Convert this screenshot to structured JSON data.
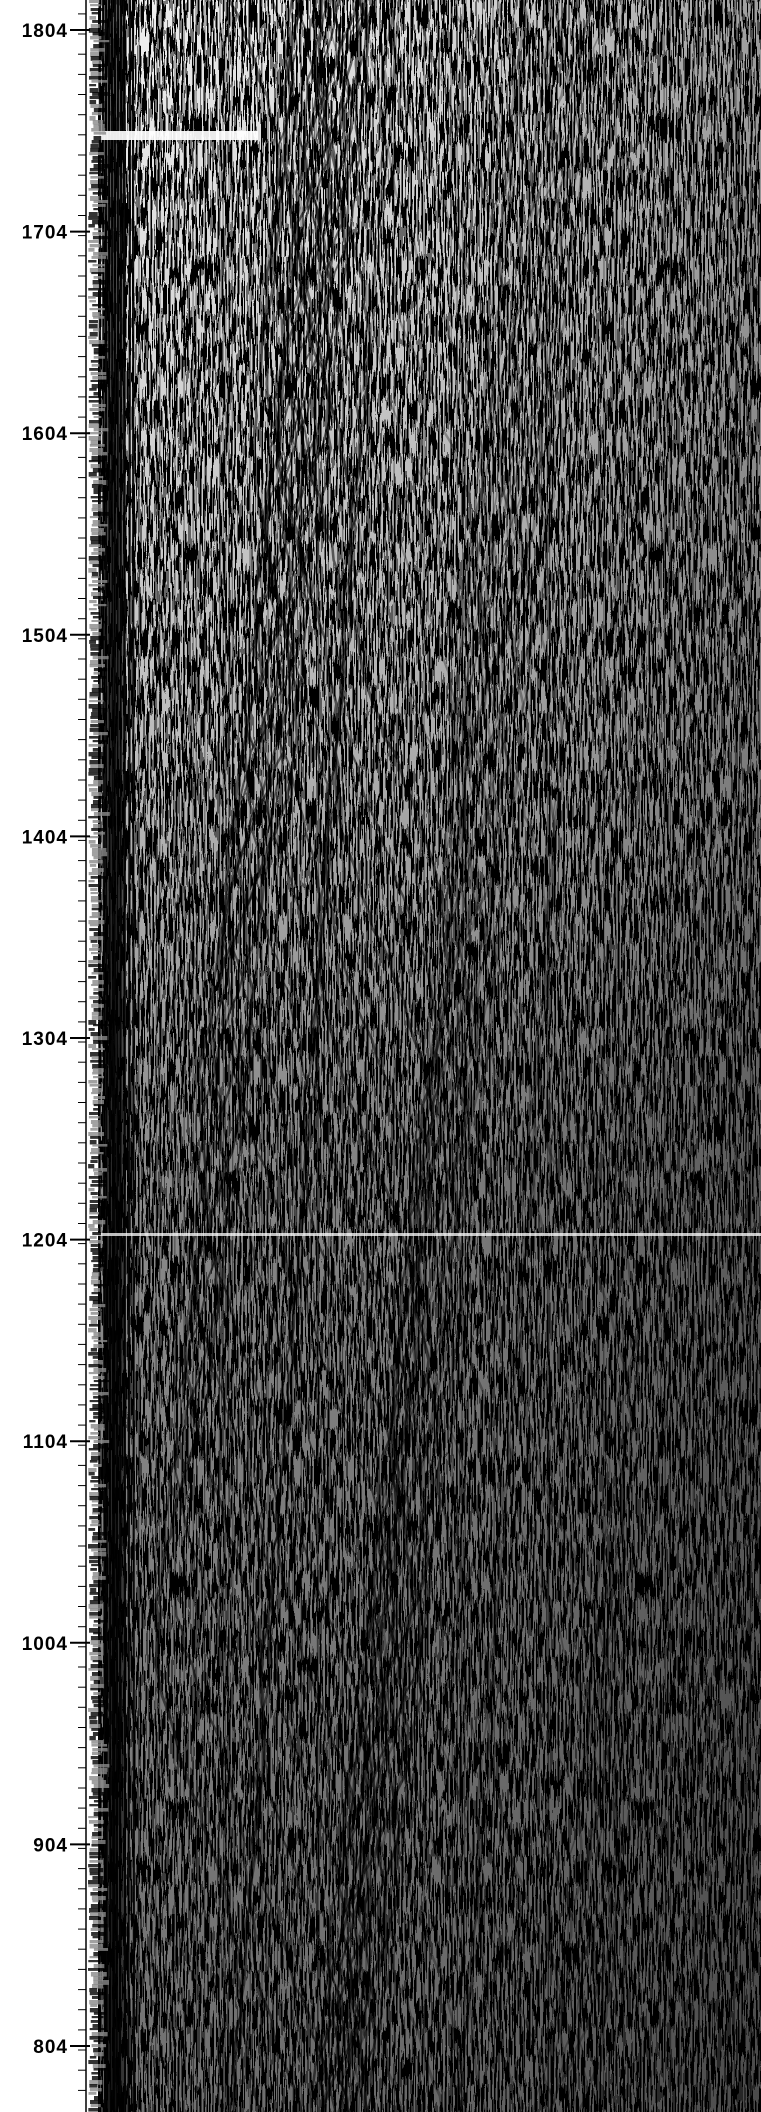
{
  "axis": {
    "labels": [
      "1804",
      "1704",
      "1604",
      "1504",
      "1404",
      "1304",
      "1204",
      "1104",
      "1004",
      "904",
      "804"
    ],
    "values": [
      1804,
      1704,
      1604,
      1504,
      1404,
      1304,
      1204,
      1104,
      1004,
      904,
      804
    ],
    "range": [
      778,
      1822
    ],
    "direction": "decreasing-downward"
  },
  "colors": {
    "background": "#ffffff",
    "ink": "#000000",
    "dither": "#8a8a8a"
  }
}
